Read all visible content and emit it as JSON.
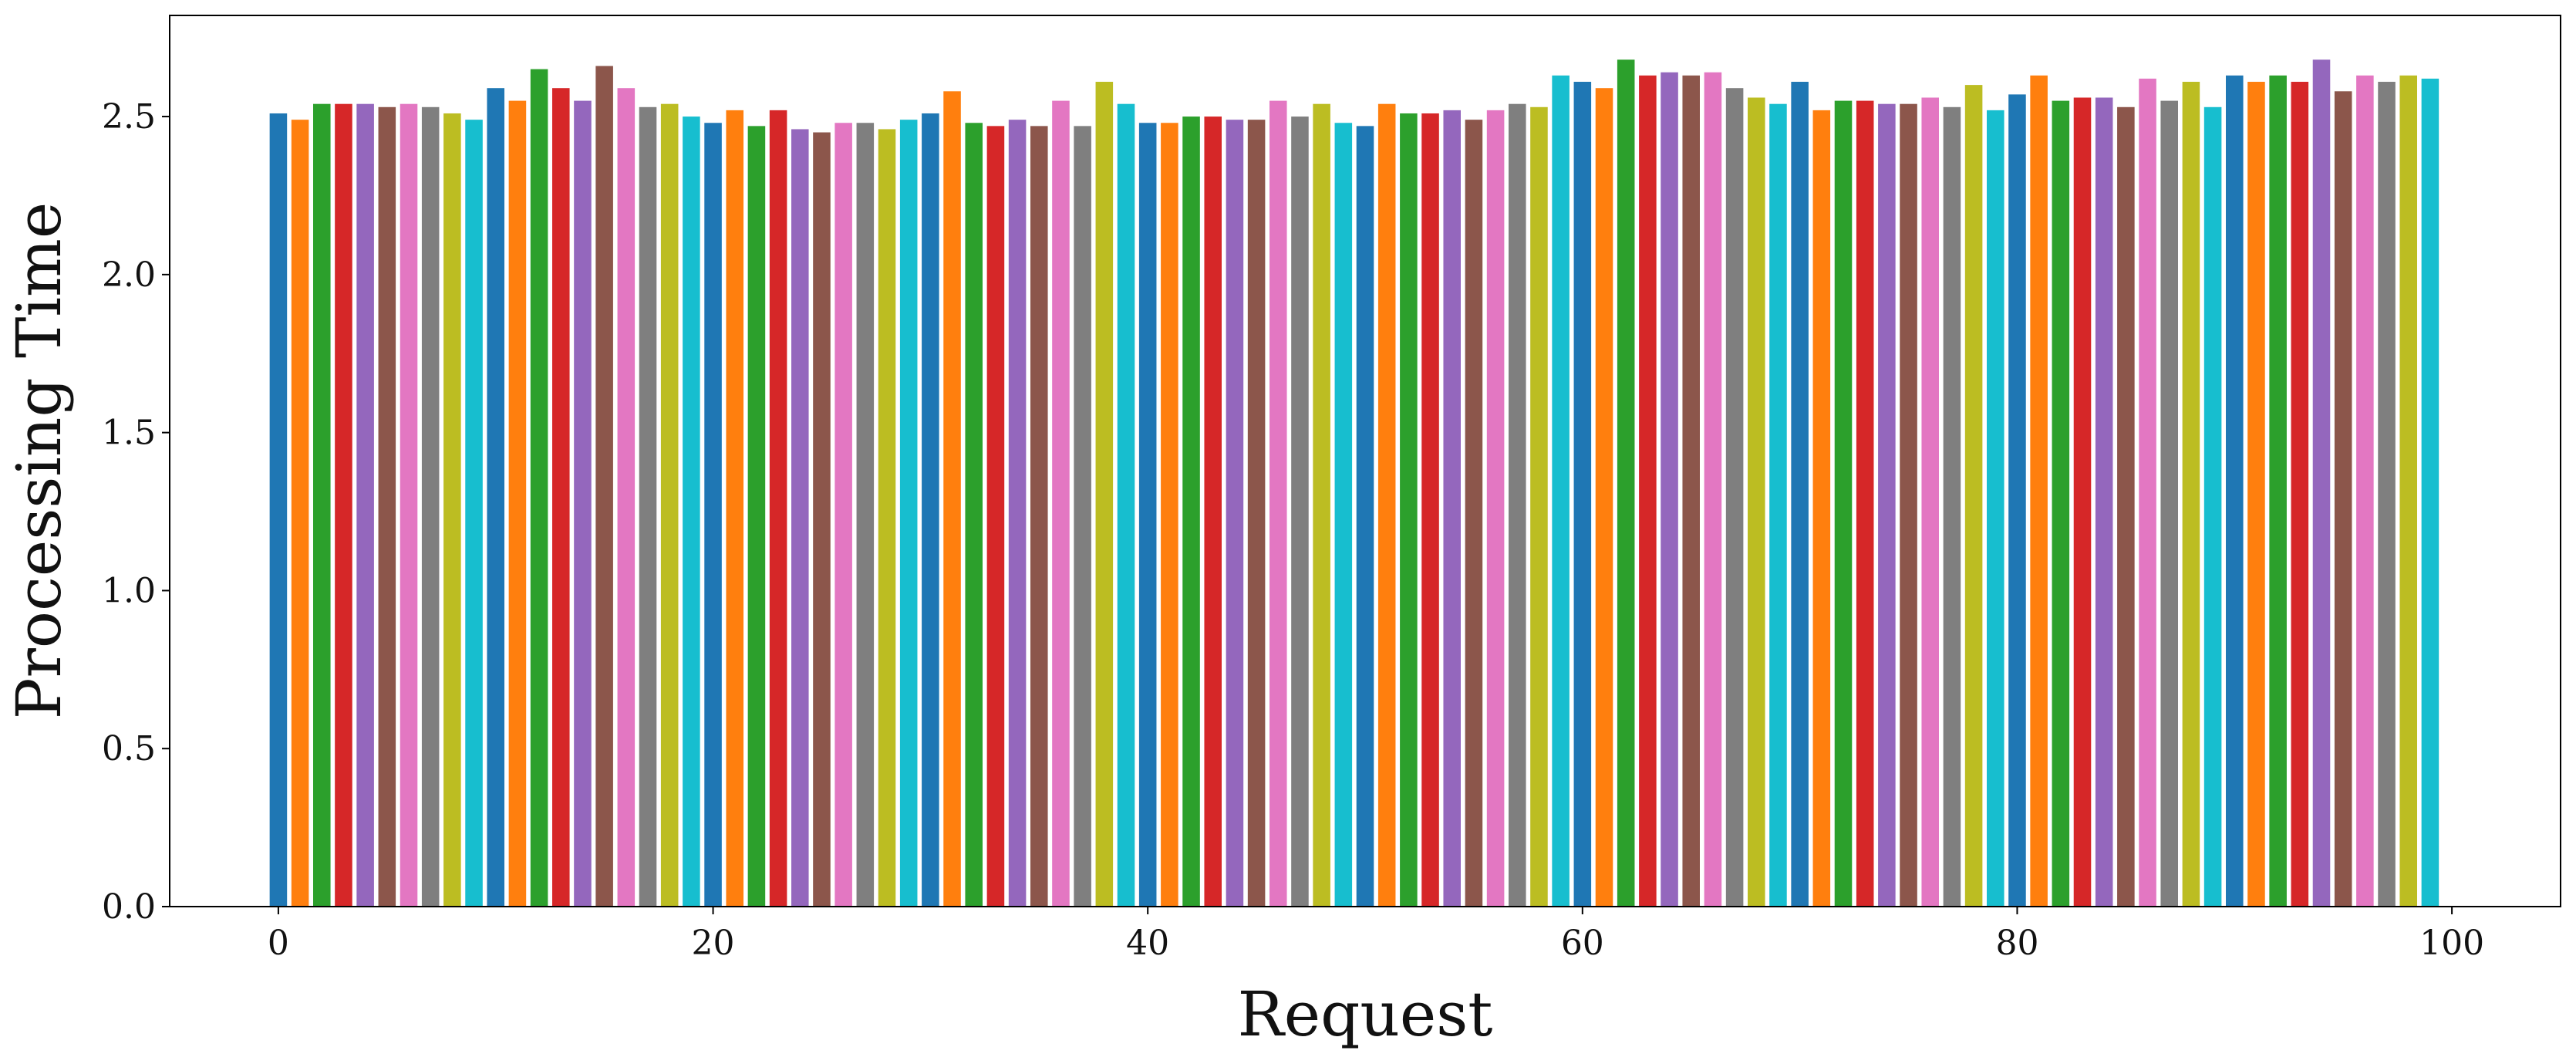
{
  "chart_data": {
    "type": "bar",
    "title": "",
    "xlabel": "Request",
    "ylabel": "Processing Time",
    "xlim": [
      -5,
      105
    ],
    "ylim": [
      0,
      2.82
    ],
    "xticks": [
      0,
      20,
      40,
      60,
      80,
      100
    ],
    "xtick_labels": [
      "0",
      "20",
      "40",
      "60",
      "80",
      "100"
    ],
    "yticks": [
      0,
      0.5,
      1.0,
      1.5,
      2.0,
      2.5
    ],
    "ytick_labels": [
      "0.0",
      "0.5",
      "1.0",
      "1.5",
      "2.0",
      "2.5"
    ],
    "grid": false,
    "bar_width": 0.8,
    "palette": [
      "#1f77b4",
      "#ff7f0e",
      "#2ca02c",
      "#d62728",
      "#9467bd",
      "#8c564b",
      "#e377c2",
      "#7f7f7f",
      "#bcbd22",
      "#17becf"
    ],
    "x": [
      0,
      1,
      2,
      3,
      4,
      5,
      6,
      7,
      8,
      9,
      10,
      11,
      12,
      13,
      14,
      15,
      16,
      17,
      18,
      19,
      20,
      21,
      22,
      23,
      24,
      25,
      26,
      27,
      28,
      29,
      30,
      31,
      32,
      33,
      34,
      35,
      36,
      37,
      38,
      39,
      40,
      41,
      42,
      43,
      44,
      45,
      46,
      47,
      48,
      49,
      50,
      51,
      52,
      53,
      54,
      55,
      56,
      57,
      58,
      59,
      60,
      61,
      62,
      63,
      64,
      65,
      66,
      67,
      68,
      69,
      70,
      71,
      72,
      73,
      74,
      75,
      76,
      77,
      78,
      79,
      80,
      81,
      82,
      83,
      84,
      85,
      86,
      87,
      88,
      89,
      90,
      91,
      92,
      93,
      94,
      95,
      96,
      97,
      98,
      99
    ],
    "values": [
      2.51,
      2.49,
      2.54,
      2.54,
      2.54,
      2.53,
      2.54,
      2.53,
      2.51,
      2.49,
      2.59,
      2.55,
      2.65,
      2.59,
      2.55,
      2.66,
      2.59,
      2.53,
      2.54,
      2.5,
      2.48,
      2.52,
      2.47,
      2.52,
      2.46,
      2.45,
      2.48,
      2.48,
      2.46,
      2.49,
      2.51,
      2.58,
      2.48,
      2.47,
      2.49,
      2.47,
      2.55,
      2.47,
      2.61,
      2.54,
      2.48,
      2.48,
      2.5,
      2.5,
      2.49,
      2.49,
      2.55,
      2.5,
      2.54,
      2.48,
      2.47,
      2.54,
      2.51,
      2.51,
      2.52,
      2.49,
      2.52,
      2.54,
      2.53,
      2.63,
      2.61,
      2.59,
      2.68,
      2.63,
      2.64,
      2.63,
      2.64,
      2.59,
      2.56,
      2.54,
      2.61,
      2.52,
      2.55,
      2.55,
      2.54,
      2.54,
      2.56,
      2.53,
      2.6,
      2.52,
      2.57,
      2.63,
      2.55,
      2.56,
      2.56,
      2.53,
      2.62,
      2.55,
      2.61,
      2.53,
      2.63,
      2.61,
      2.63,
      2.61,
      2.68,
      2.58,
      2.63,
      2.61,
      2.63,
      2.62
    ]
  }
}
